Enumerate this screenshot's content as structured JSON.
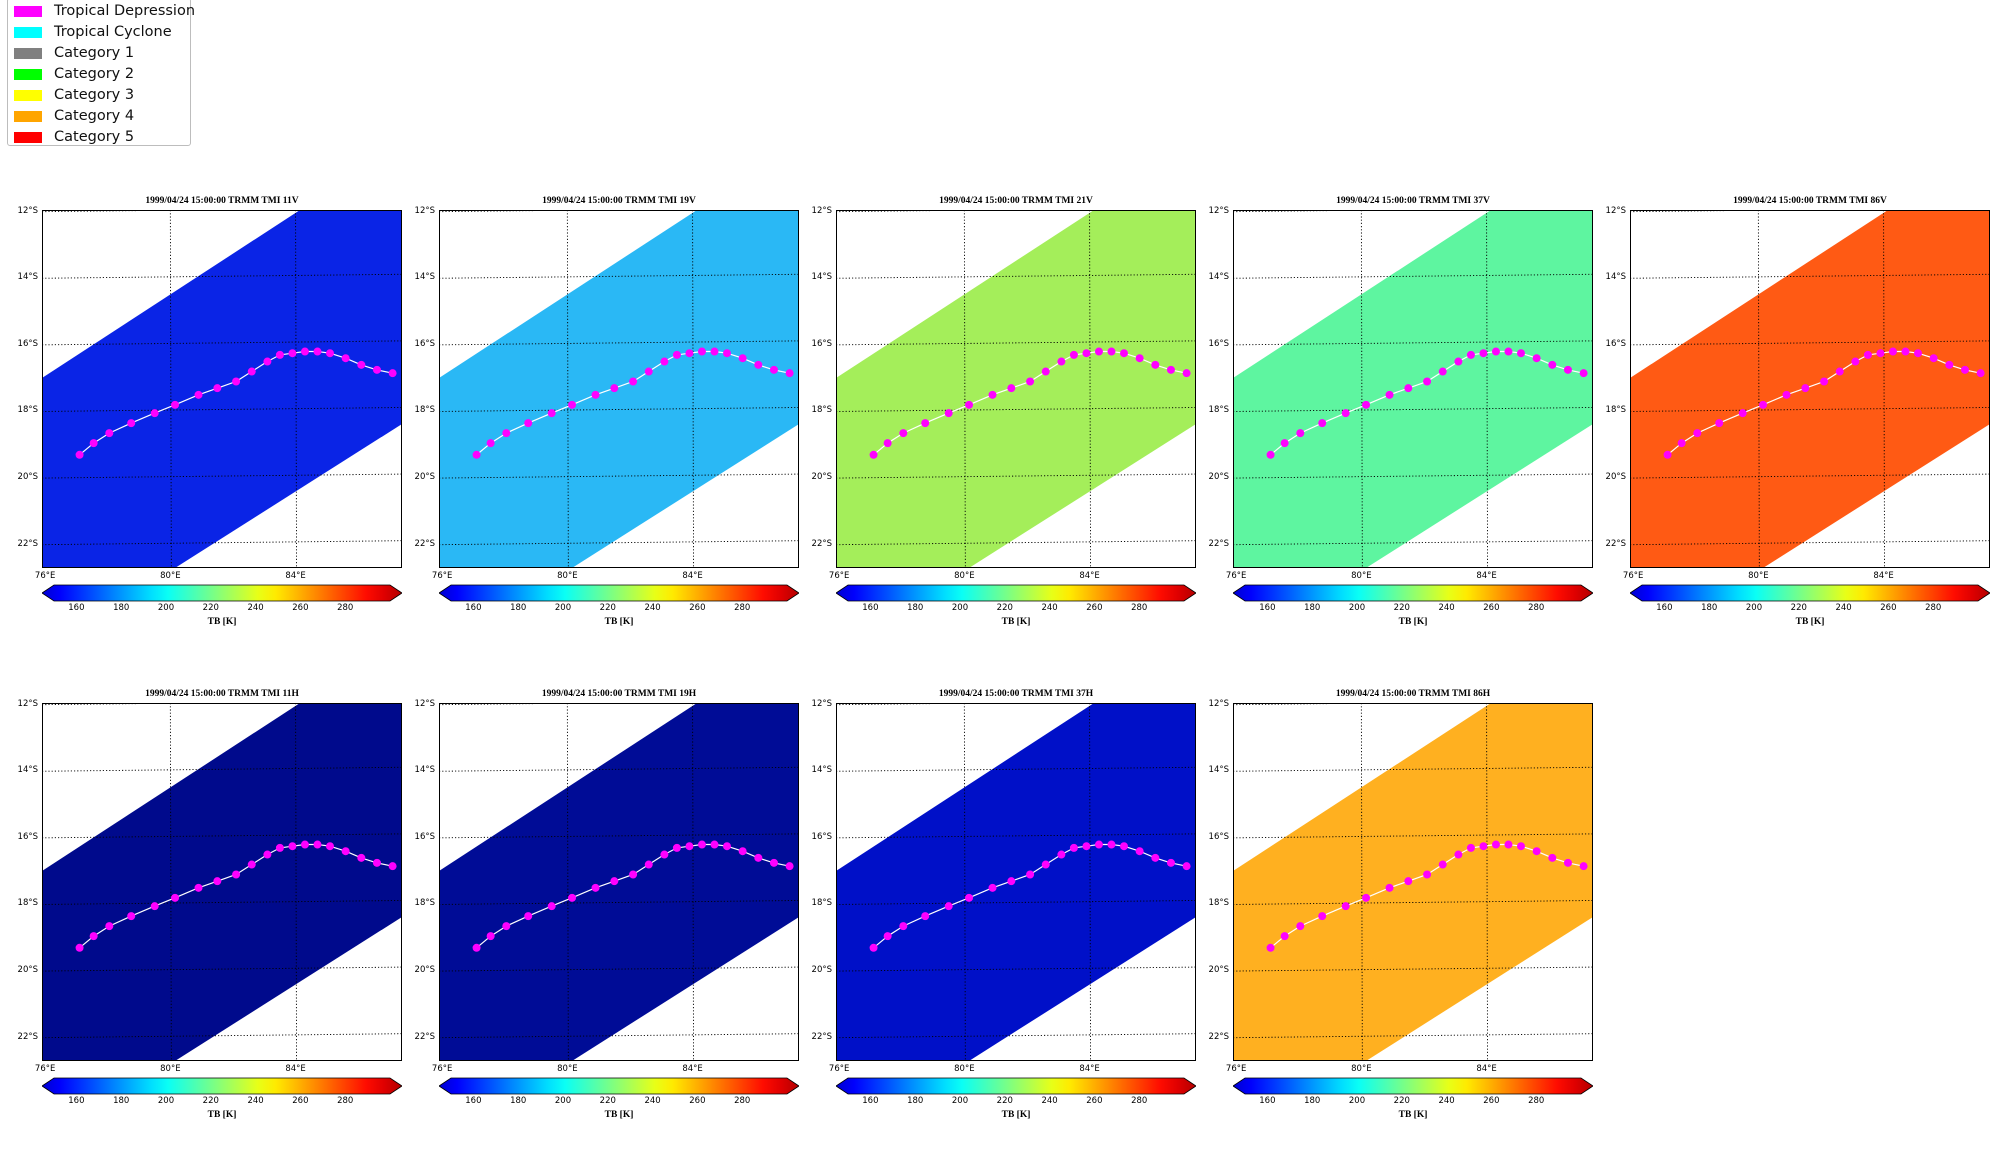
{
  "legend": {
    "items": [
      {
        "label": "Tropical Depression",
        "color": "#ff00ff"
      },
      {
        "label": "Tropical Cyclone",
        "color": "#00ffff"
      },
      {
        "label": "Category 1",
        "color": "#808080"
      },
      {
        "label": "Category 2",
        "color": "#00ff00"
      },
      {
        "label": "Category 3",
        "color": "#ffff00"
      },
      {
        "label": "Category 4",
        "color": "#ffa500"
      },
      {
        "label": "Category 5",
        "color": "#ff0000"
      }
    ]
  },
  "panels": [
    {
      "title": "1999/04/24 15:00:00  TRMM TMI 11V",
      "base_color": "#0a24e6",
      "track_color": "#ff00ff"
    },
    {
      "title": "1999/04/24 15:00:00  TRMM TMI 19V",
      "base_color": "#2ab8f5",
      "track_color": "#ff00ff"
    },
    {
      "title": "1999/04/24 15:00:00  TRMM TMI 21V",
      "base_color": "#a4ee5a",
      "track_color": "#ff00ff"
    },
    {
      "title": "1999/04/24 15:00:00  TRMM TMI 37V",
      "base_color": "#5ef5a0",
      "track_color": "#ff00ff"
    },
    {
      "title": "1999/04/24 15:00:00  TRMM TMI 86V",
      "base_color": "#ff5a14",
      "track_color": "#ff00ff"
    },
    {
      "title": "1999/04/24 15:00:00  TRMM TMI 11H",
      "base_color": "#000a8c",
      "track_color": "#ff00ff"
    },
    {
      "title": "1999/04/24 15:00:00  TRMM TMI 19H",
      "base_color": "#000c96",
      "track_color": "#ff00ff"
    },
    {
      "title": "1999/04/24 15:00:00  TRMM TMI 37H",
      "base_color": "#0010c8",
      "track_color": "#ff00ff"
    },
    {
      "title": "1999/04/24 15:00:00  TRMM TMI 86H",
      "base_color": "#ffb020",
      "track_color": "#ff00ff"
    }
  ],
  "map": {
    "lat_labels": [
      "12°S",
      "14°S",
      "16°S",
      "18°S",
      "20°S",
      "22°S"
    ],
    "lon_labels": [
      "76°E",
      "80°E",
      "84°E"
    ]
  },
  "colorbar": {
    "ticks": [
      "160",
      "180",
      "200",
      "220",
      "240",
      "260",
      "280"
    ],
    "unit": "TB [K]",
    "range": [
      150,
      300
    ]
  }
}
